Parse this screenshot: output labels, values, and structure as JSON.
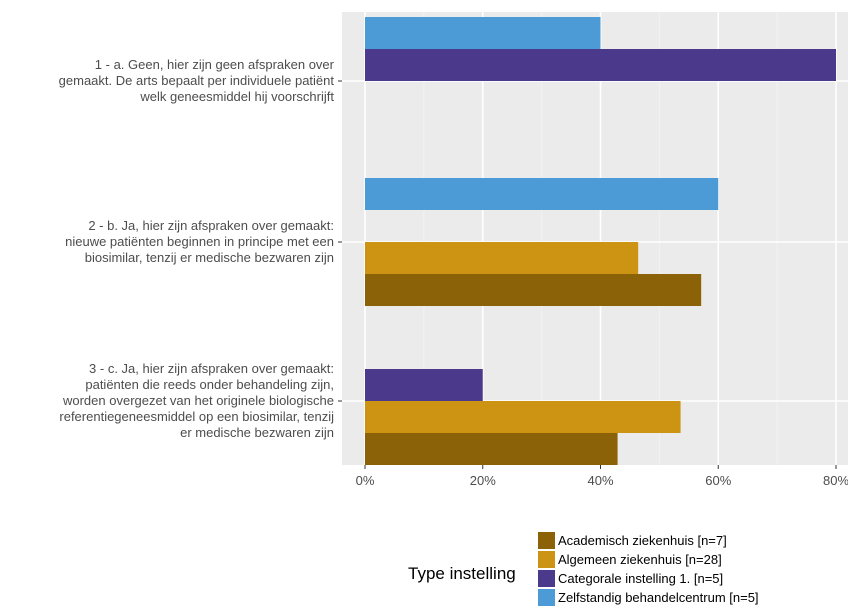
{
  "chart_data": {
    "type": "bar",
    "orientation": "horizontal",
    "categories": [
      [
        "1 - a. Geen, hier zijn geen afspraken over",
        "gemaakt. De arts bepaalt per individuele patiënt",
        "welk geneesmiddel hij voorschrijft"
      ],
      [
        "2 - b. Ja, hier zijn afspraken over gemaakt:",
        "nieuwe patiënten beginnen in principe met een",
        "biosimilar, tenzij er medische bezwaren zijn"
      ],
      [
        "3 - c. Ja, hier zijn afspraken over gemaakt:",
        "patiënten die reeds onder behandeling zijn,",
        "worden overgezet van het originele biologische",
        "referentiegeneesmiddel op een biosimilar, tenzij",
        "er medische bezwaren zijn"
      ]
    ],
    "series": [
      {
        "name": "Academisch ziekenhuis [n=7]",
        "color": "#8B6208",
        "values": [
          0,
          57.1,
          42.9
        ]
      },
      {
        "name": "Algemeen ziekenhuis [n=28]",
        "color": "#CC9412",
        "values": [
          0,
          46.4,
          53.6
        ]
      },
      {
        "name": "Categorale instelling 1. [n=5]",
        "color": "#4B3A8C",
        "values": [
          80,
          0,
          20
        ]
      },
      {
        "name": "Zelfstandig behandelcentrum [n=5]",
        "color": "#4C9BD6",
        "values": [
          40,
          60,
          0
        ]
      }
    ],
    "xlim": [
      0,
      80
    ],
    "xticks": [
      "0%",
      "20%",
      "40%",
      "60%",
      "80%"
    ],
    "grid": true,
    "legend_title": "Type instelling",
    "legend_position": "bottom",
    "colors": {
      "panel": "#EBEBEB",
      "grid_major": "#ffffff",
      "grid_minor": "#F2F2F2"
    }
  }
}
